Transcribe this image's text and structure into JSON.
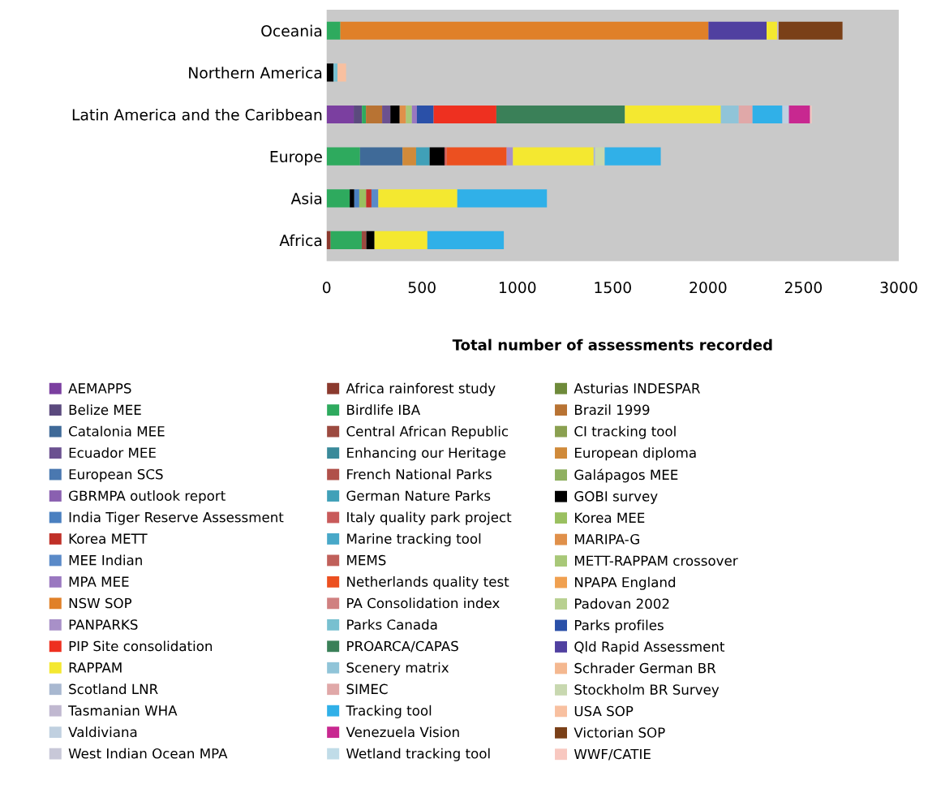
{
  "chart_data": {
    "type": "bar",
    "orientation": "horizontal",
    "stacked": true,
    "categories": [
      "Oceania",
      "Northern America",
      "Latin America and the Caribbean",
      "Europe",
      "Asia",
      "Africa"
    ],
    "xlabel": "Total number of assessments recorded",
    "xlim": [
      0,
      3000
    ],
    "xticks": [
      0,
      500,
      1000,
      1500,
      2000,
      2500,
      3000
    ],
    "grid": false,
    "legend": "bottom",
    "series": [
      {
        "name": "AEMAPPS",
        "color": "#7b3fa0",
        "values": [
          null,
          null,
          142,
          null,
          null,
          null
        ]
      },
      {
        "name": "Africa rainforest study",
        "color": "#8b3a2e",
        "values": [
          null,
          null,
          null,
          null,
          null,
          21
        ]
      },
      {
        "name": "Asturias INDESPAR",
        "color": "#6e8a3a",
        "values": [
          null,
          null,
          null,
          null,
          null,
          null
        ]
      },
      {
        "name": "Belize MEE",
        "color": "#5b4a7e",
        "values": [
          null,
          null,
          43,
          null,
          null,
          null
        ]
      },
      {
        "name": "Birdlife IBA",
        "color": "#2eaa5e",
        "values": [
          72,
          null,
          21,
          175,
          121,
          163
        ]
      },
      {
        "name": "Brazil 1999",
        "color": "#b87333",
        "values": [
          null,
          null,
          85,
          null,
          null,
          null
        ]
      },
      {
        "name": "Catalonia MEE",
        "color": "#3f6a98",
        "values": [
          null,
          null,
          null,
          223,
          null,
          null
        ]
      },
      {
        "name": "Central African Republic",
        "color": "#9c4a40",
        "values": [
          null,
          null,
          null,
          null,
          null,
          24
        ]
      },
      {
        "name": "CI tracking tool",
        "color": "#8aa050",
        "values": [
          null,
          null,
          null,
          null,
          null,
          null
        ]
      },
      {
        "name": "Ecuador MEE",
        "color": "#6b5190",
        "values": [
          null,
          null,
          43,
          null,
          null,
          null
        ]
      },
      {
        "name": "Enhancing our Heritage",
        "color": "#3a8a9a",
        "values": [
          null,
          null,
          null,
          null,
          null,
          null
        ]
      },
      {
        "name": "European diploma",
        "color": "#d08a3a",
        "values": [
          null,
          null,
          null,
          71,
          null,
          null
        ]
      },
      {
        "name": "European SCS",
        "color": "#4a78b0",
        "values": [
          null,
          null,
          null,
          null,
          null,
          null
        ]
      },
      {
        "name": "French National Parks",
        "color": "#b0504a",
        "values": [
          null,
          null,
          null,
          null,
          null,
          null
        ]
      },
      {
        "name": "Galápagos MEE",
        "color": "#8fb060",
        "values": [
          null,
          null,
          null,
          null,
          null,
          null
        ]
      },
      {
        "name": "GBRMPA outlook report",
        "color": "#8a60b0",
        "values": [
          null,
          null,
          null,
          null,
          null,
          null
        ]
      },
      {
        "name": "German Nature Parks",
        "color": "#40a0b8",
        "values": [
          null,
          null,
          null,
          71,
          null,
          null
        ]
      },
      {
        "name": "GOBI survey",
        "color": "#000000",
        "values": [
          null,
          36,
          49,
          78,
          24,
          43
        ]
      },
      {
        "name": "India Tiger Reserve Assessment",
        "color": "#4a80c0",
        "values": [
          null,
          null,
          null,
          null,
          26,
          null
        ]
      },
      {
        "name": "Italy quality park project",
        "color": "#c85a5a",
        "values": [
          null,
          null,
          null,
          11,
          null,
          null
        ]
      },
      {
        "name": "Korea MEE",
        "color": "#9ac060",
        "values": [
          null,
          null,
          null,
          null,
          36,
          null
        ]
      },
      {
        "name": "Korea METT",
        "color": "#c03028",
        "values": [
          null,
          null,
          null,
          null,
          28,
          null
        ]
      },
      {
        "name": "Marine tracking tool",
        "color": "#48a8c8",
        "values": [
          null,
          null,
          null,
          null,
          null,
          null
        ]
      },
      {
        "name": "MARIPA-G",
        "color": "#e0904a",
        "values": [
          null,
          null,
          33,
          null,
          null,
          null
        ]
      },
      {
        "name": "MEE Indian",
        "color": "#5a8ac8",
        "values": [
          null,
          null,
          null,
          null,
          36,
          null
        ]
      },
      {
        "name": "MEMS",
        "color": "#c0605a",
        "values": [
          null,
          null,
          null,
          null,
          null,
          null
        ]
      },
      {
        "name": "METT-RAPPAM crossover",
        "color": "#a8c878",
        "values": [
          null,
          null,
          31,
          null,
          null,
          null
        ]
      },
      {
        "name": "MPA MEE",
        "color": "#9a78c0",
        "values": [
          null,
          null,
          26,
          null,
          null,
          null
        ]
      },
      {
        "name": "Netherlands quality test",
        "color": "#ec5020",
        "values": [
          null,
          null,
          null,
          315,
          null,
          null
        ]
      },
      {
        "name": "NPAPA England",
        "color": "#f0a050",
        "values": [
          null,
          null,
          null,
          null,
          null,
          null
        ]
      },
      {
        "name": "NSW SOP",
        "color": "#e08028",
        "values": [
          1930,
          null,
          null,
          null,
          null,
          null
        ]
      },
      {
        "name": "PA Consolidation index",
        "color": "#d08080",
        "values": [
          null,
          null,
          null,
          null,
          null,
          null
        ]
      },
      {
        "name": "Padovan 2002",
        "color": "#b8d090",
        "values": [
          null,
          null,
          null,
          null,
          null,
          null
        ]
      },
      {
        "name": "PANPARKS",
        "color": "#a890c8",
        "values": [
          null,
          null,
          null,
          33,
          null,
          null
        ]
      },
      {
        "name": "Parks Canada",
        "color": "#78c0d0",
        "values": [
          null,
          21,
          null,
          null,
          null,
          null
        ]
      },
      {
        "name": "Parks profiles",
        "color": "#2a50a8",
        "values": [
          null,
          null,
          88,
          null,
          null,
          null
        ]
      },
      {
        "name": "PIP Site consolidation",
        "color": "#ee3020",
        "values": [
          null,
          null,
          329,
          null,
          null,
          null
        ]
      },
      {
        "name": "PROARCA/CAPAS",
        "color": "#3a8058",
        "values": [
          null,
          null,
          674,
          null,
          null,
          null
        ]
      },
      {
        "name": "Qld Rapid Assessment",
        "color": "#5040a0",
        "values": [
          305,
          null,
          null,
          null,
          null,
          null
        ]
      },
      {
        "name": "RAPPAM",
        "color": "#f4e830",
        "values": [
          55,
          null,
          503,
          423,
          414,
          277
        ]
      },
      {
        "name": "Scenery matrix",
        "color": "#90c4d8",
        "values": [
          null,
          null,
          94,
          null,
          null,
          null
        ]
      },
      {
        "name": "Schrader German BR",
        "color": "#f4b890",
        "values": [
          null,
          null,
          null,
          null,
          null,
          null
        ]
      },
      {
        "name": "Scotland LNR",
        "color": "#a8b8d0",
        "values": [
          null,
          null,
          null,
          8,
          null,
          null
        ]
      },
      {
        "name": "SIMEC",
        "color": "#e0a8a8",
        "values": [
          null,
          null,
          72,
          null,
          null,
          null
        ]
      },
      {
        "name": "Stockholm BR Survey",
        "color": "#c8d8b0",
        "values": [
          null,
          null,
          null,
          50,
          null,
          null
        ]
      },
      {
        "name": "Tasmanian WHA",
        "color": "#c0b8d0",
        "values": [
          8,
          null,
          null,
          null,
          null,
          null
        ]
      },
      {
        "name": "Tracking tool",
        "color": "#30b0e8",
        "values": [
          null,
          null,
          157,
          294,
          470,
          401
        ]
      },
      {
        "name": "USA SOP",
        "color": "#f8c0a0",
        "values": [
          null,
          45,
          null,
          null,
          null,
          null
        ]
      },
      {
        "name": "Valdiviana",
        "color": "#c0d0e0",
        "values": [
          null,
          null,
          34,
          null,
          null,
          null
        ]
      },
      {
        "name": "Venezuela Vision",
        "color": "#c82890",
        "values": [
          null,
          null,
          111,
          null,
          null,
          null
        ]
      },
      {
        "name": "Victorian SOP",
        "color": "#7a4018",
        "values": [
          335,
          null,
          null,
          null,
          null,
          null
        ]
      },
      {
        "name": "West Indian Ocean MPA",
        "color": "#c8c8d8",
        "values": [
          null,
          null,
          null,
          null,
          null,
          null
        ]
      },
      {
        "name": "Wetland tracking tool",
        "color": "#c0dce8",
        "values": [
          null,
          null,
          null,
          null,
          null,
          null
        ]
      },
      {
        "name": "WWF/CATIE",
        "color": "#f8c8c0",
        "values": [
          null,
          null,
          8,
          null,
          null,
          null
        ]
      }
    ]
  }
}
